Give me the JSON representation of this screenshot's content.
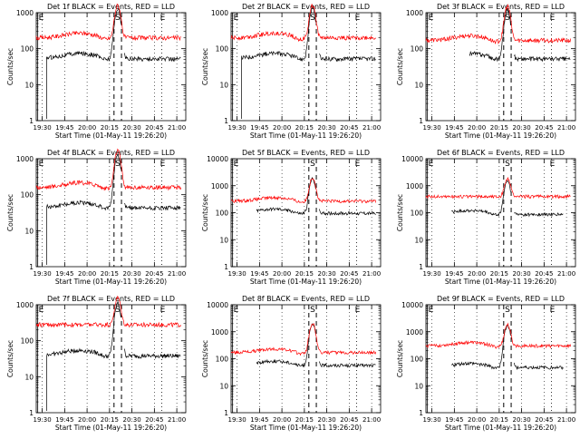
{
  "figure": {
    "ylabel": "Counts/sec",
    "xlabel": "Start Time (01-May-11 19:26:20)",
    "marker_labels": [
      "E",
      "S",
      "E"
    ],
    "x_tick_labels": [
      "19:30",
      "19:45",
      "20:00",
      "20:15",
      "20:30",
      "20:45",
      "21:00"
    ],
    "colors": {
      "events": "#000000",
      "lld": "#ff0000",
      "axes": "#000000",
      "background": "#ffffff"
    }
  },
  "chart_data": [
    {
      "type": "line",
      "title": "Det 1f BLACK = Events, RED = LLD",
      "xlabel": "Start Time (01-May-11 19:26:20)",
      "ylabel": "Counts/sec",
      "xlim": [
        "19:26",
        "21:06"
      ],
      "ylim": [
        1,
        1000
      ],
      "yscale": "log",
      "yticks": [
        "1",
        "10",
        "100",
        "1000"
      ],
      "markers": {
        "E_start": "19:27",
        "S_start": "20:18",
        "S_end": "20:23",
        "E_end": "20:50"
      },
      "series": [
        {
          "name": "Events",
          "color": "#000000",
          "start": "19:33",
          "end": "21:03",
          "level": 55,
          "peak": 1300,
          "shape": "hump",
          "gap": [
            "20:23",
            "20:25"
          ]
        },
        {
          "name": "LLD",
          "color": "#ff0000",
          "start": "19:26",
          "end": "21:03",
          "level": 200,
          "peak": 1600,
          "shape": "hump"
        }
      ]
    },
    {
      "type": "line",
      "title": "Det 2f BLACK = Events, RED = LLD",
      "xlabel": "Start Time (01-May-11 19:26:20)",
      "ylabel": "Counts/sec",
      "xlim": [
        "19:26",
        "21:06"
      ],
      "ylim": [
        1,
        1000
      ],
      "yscale": "log",
      "yticks": [
        "1",
        "10",
        "100",
        "1000"
      ],
      "markers": {
        "E_start": "19:27",
        "S_start": "20:18",
        "S_end": "20:23",
        "E_end": "20:50"
      },
      "series": [
        {
          "name": "Events",
          "color": "#000000",
          "start": "19:33",
          "end": "21:03",
          "level": 55,
          "peak": 1300,
          "shape": "hump",
          "gap": [
            "20:23",
            "20:25"
          ]
        },
        {
          "name": "LLD",
          "color": "#ff0000",
          "start": "19:26",
          "end": "21:03",
          "level": 200,
          "peak": 1600,
          "shape": "hump"
        }
      ]
    },
    {
      "type": "line",
      "title": "Det 3f BLACK = Events, RED = LLD",
      "xlabel": "Start Time (01-May-11 19:26:20)",
      "ylabel": "Counts/sec",
      "xlim": [
        "19:26",
        "21:06"
      ],
      "ylim": [
        1,
        1000
      ],
      "yscale": "log",
      "yticks": [
        "1",
        "10",
        "100",
        "1000"
      ],
      "markers": {
        "E_start": "19:27",
        "S_start": "20:18",
        "S_end": "20:23",
        "E_end": "20:50"
      },
      "series": [
        {
          "name": "Events",
          "color": "#000000",
          "start": "19:55",
          "end": "21:03",
          "level": 55,
          "peak": 1200,
          "shape": "hump",
          "gap": [
            "20:23",
            "20:25"
          ]
        },
        {
          "name": "LLD",
          "color": "#ff0000",
          "start": "19:26",
          "end": "21:03",
          "level": 170,
          "peak": 1500,
          "shape": "hump"
        }
      ]
    },
    {
      "type": "line",
      "title": "Det 4f BLACK = Events, RED = LLD",
      "xlabel": "Start Time (01-May-11 19:26:20)",
      "ylabel": "Counts/sec",
      "xlim": [
        "19:26",
        "21:06"
      ],
      "ylim": [
        1,
        1000
      ],
      "yscale": "log",
      "yticks": [
        "1",
        "10",
        "100",
        "1000"
      ],
      "markers": {
        "E_start": "19:27",
        "S_start": "20:18",
        "S_end": "20:23",
        "E_end": "20:50"
      },
      "series": [
        {
          "name": "Events",
          "color": "#000000",
          "start": "19:33",
          "end": "21:03",
          "level": 45,
          "peak": 1300,
          "shape": "hump",
          "gap": [
            "20:23",
            "20:25"
          ]
        },
        {
          "name": "LLD",
          "color": "#ff0000",
          "start": "19:26",
          "end": "21:03",
          "level": 160,
          "peak": 1700,
          "shape": "hump"
        }
      ]
    },
    {
      "type": "line",
      "title": "Det 5f BLACK = Events, RED = LLD",
      "xlabel": "Start Time (01-May-11 19:26:20)",
      "ylabel": "Counts/sec",
      "xlim": [
        "19:26",
        "21:06"
      ],
      "ylim": [
        1,
        10000
      ],
      "yscale": "log",
      "yticks": [
        "1",
        "10",
        "100",
        "1000",
        "10000"
      ],
      "markers": {
        "E_start": "19:27",
        "S_start": "20:18",
        "S_end": "20:23",
        "E_end": "20:50"
      },
      "series": [
        {
          "name": "Events",
          "color": "#000000",
          "start": "19:43",
          "end": "21:03",
          "level": 100,
          "peak": 1800,
          "shape": "hump",
          "gap": [
            "20:23",
            "20:25"
          ]
        },
        {
          "name": "LLD",
          "color": "#ff0000",
          "start": "19:26",
          "end": "21:03",
          "level": 270,
          "peak": 2000,
          "shape": "hump"
        }
      ]
    },
    {
      "type": "line",
      "title": "Det 6f BLACK = Events, RED = LLD",
      "xlabel": "Start Time (01-May-11 19:26:20)",
      "ylabel": "Counts/sec",
      "xlim": [
        "19:26",
        "21:06"
      ],
      "ylim": [
        1,
        10000
      ],
      "yscale": "log",
      "yticks": [
        "1",
        "10",
        "100",
        "1000",
        "10000"
      ],
      "markers": {
        "E_start": "19:27",
        "S_start": "20:18",
        "S_end": "20:23",
        "E_end": "20:50"
      },
      "series": [
        {
          "name": "Events",
          "color": "#000000",
          "start": "19:43",
          "end": "20:58",
          "level": 90,
          "peak": 1500,
          "shape": "hump",
          "gap": [
            "20:23",
            "20:25"
          ]
        },
        {
          "name": "LLD",
          "color": "#ff0000",
          "start": "19:26",
          "end": "21:03",
          "level": 400,
          "peak": 1800,
          "shape": "flat"
        }
      ]
    },
    {
      "type": "line",
      "title": "Det 7f BLACK = Events, RED = LLD",
      "xlabel": "Start Time (01-May-11 19:26:20)",
      "ylabel": "Counts/sec",
      "xlim": [
        "19:26",
        "21:06"
      ],
      "ylim": [
        1,
        1000
      ],
      "yscale": "log",
      "yticks": [
        "1",
        "10",
        "100",
        "1000"
      ],
      "markers": {
        "E_start": "19:27",
        "S_start": "20:18",
        "S_end": "20:23",
        "E_end": "20:50"
      },
      "series": [
        {
          "name": "Events",
          "color": "#000000",
          "start": "19:33",
          "end": "21:03",
          "level": 40,
          "peak": 1100,
          "shape": "hump",
          "gap": [
            "20:23",
            "20:25"
          ]
        },
        {
          "name": "LLD",
          "color": "#ff0000",
          "start": "19:26",
          "end": "21:03",
          "level": 280,
          "peak": 1600,
          "shape": "flat"
        }
      ]
    },
    {
      "type": "line",
      "title": "Det 8f BLACK = Events, RED = LLD",
      "xlabel": "Start Time (01-May-11 19:26:20)",
      "ylabel": "Counts/sec",
      "xlim": [
        "19:26",
        "21:06"
      ],
      "ylim": [
        1,
        10000
      ],
      "yscale": "log",
      "yticks": [
        "1",
        "10",
        "100",
        "1000",
        "10000"
      ],
      "markers": {
        "E_start": "19:27",
        "S_start": "20:18",
        "S_end": "20:23",
        "E_end": "20:50"
      },
      "series": [
        {
          "name": "Events",
          "color": "#000000",
          "start": "19:43",
          "end": "21:03",
          "level": 60,
          "peak": 1800,
          "shape": "hump",
          "gap": [
            "20:23",
            "20:25"
          ]
        },
        {
          "name": "LLD",
          "color": "#ff0000",
          "start": "19:26",
          "end": "21:03",
          "level": 170,
          "peak": 2000,
          "shape": "hump"
        }
      ]
    },
    {
      "type": "line",
      "title": "Det 9f BLACK = Events, RED = LLD",
      "xlabel": "Start Time (01-May-11 19:26:20)",
      "ylabel": "Counts/sec",
      "xlim": [
        "19:26",
        "21:06"
      ],
      "ylim": [
        1,
        10000
      ],
      "yscale": "log",
      "yticks": [
        "1",
        "10",
        "100",
        "1000",
        "10000"
      ],
      "markers": {
        "E_start": "19:27",
        "S_start": "20:18",
        "S_end": "20:23",
        "E_end": "20:50"
      },
      "series": [
        {
          "name": "Events",
          "color": "#000000",
          "start": "19:43",
          "end": "20:58",
          "level": 50,
          "peak": 1700,
          "shape": "hump",
          "gap": [
            "20:23",
            "20:25"
          ]
        },
        {
          "name": "LLD",
          "color": "#ff0000",
          "start": "19:26",
          "end": "21:03",
          "level": 300,
          "peak": 1800,
          "shape": "hump"
        }
      ]
    }
  ]
}
